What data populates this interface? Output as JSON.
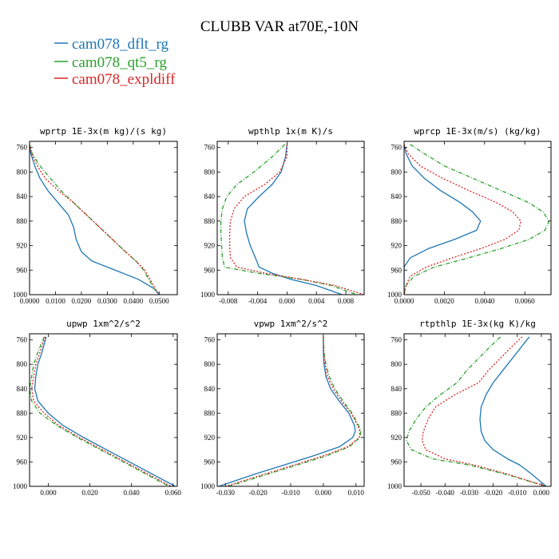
{
  "figure_title": "CLUBB VAR at70E,-10N",
  "legend": [
    {
      "label": "cam078_dflt_rg",
      "color": "#1f77b4",
      "dash": "solid"
    },
    {
      "label": "cam078_qt5_rg",
      "color": "#2ca02c",
      "dash": "dashdot"
    },
    {
      "label": "cam078_expldiff",
      "color": "#d62728",
      "dash": "dotted"
    }
  ],
  "chart_data": [
    {
      "type": "line",
      "title": "wprtp  1E-3x(m kg)/(s kg)",
      "xlim": [
        0,
        0.057
      ],
      "ylim": [
        1000,
        750
      ],
      "xticks": [
        0,
        0.01,
        0.02,
        0.03,
        0.04,
        0.05
      ],
      "xticklabels": [
        "0.0000",
        "0.0100",
        "0.0200",
        "0.0300",
        "0.0400",
        "0.0500"
      ],
      "yticks": [
        760,
        800,
        840,
        880,
        920,
        960,
        1000
      ],
      "y": [
        755,
        770,
        790,
        810,
        830,
        850,
        870,
        890,
        910,
        930,
        945,
        960,
        975,
        990,
        1000
      ],
      "series": [
        {
          "name": "cam078_dflt_rg",
          "x": [
            0.0,
            0.0005,
            0.002,
            0.004,
            0.007,
            0.011,
            0.015,
            0.017,
            0.018,
            0.02,
            0.024,
            0.033,
            0.042,
            0.048,
            0.05
          ]
        },
        {
          "name": "cam078_qt5_rg",
          "x": [
            0.0,
            0.001,
            0.004,
            0.008,
            0.012,
            0.017,
            0.022,
            0.027,
            0.032,
            0.037,
            0.041,
            0.044,
            0.046,
            0.048,
            0.05
          ]
        },
        {
          "name": "cam078_expldiff",
          "x": [
            0.0,
            0.0008,
            0.003,
            0.006,
            0.011,
            0.017,
            0.022,
            0.027,
            0.032,
            0.037,
            0.041,
            0.0445,
            0.0465,
            0.0485,
            0.05
          ]
        }
      ]
    },
    {
      "type": "line",
      "title": "wpthlp  1x(m K)/s",
      "xlim": [
        -0.0095,
        0.0105
      ],
      "ylim": [
        1000,
        750
      ],
      "xticks": [
        -0.008,
        -0.004,
        0,
        0.004,
        0.008
      ],
      "xticklabels": [
        "-0.008",
        "-0.004",
        "0.000",
        "0.004",
        "0.008"
      ],
      "yticks": [
        760,
        800,
        840,
        880,
        920,
        960,
        1000
      ],
      "y": [
        755,
        775,
        800,
        820,
        840,
        860,
        880,
        900,
        920,
        940,
        955,
        965,
        975,
        985,
        1000
      ],
      "series": [
        {
          "name": "cam078_dflt_rg",
          "x": [
            0.0,
            -0.0002,
            -0.0008,
            -0.002,
            -0.0038,
            -0.0054,
            -0.0058,
            -0.0055,
            -0.005,
            -0.0043,
            -0.0038,
            -0.002,
            0.0005,
            0.004,
            0.0075
          ]
        },
        {
          "name": "cam078_qt5_rg",
          "x": [
            -0.0003,
            -0.002,
            -0.0045,
            -0.0068,
            -0.0082,
            -0.0088,
            -0.009,
            -0.009,
            -0.0089,
            -0.0088,
            -0.0085,
            -0.004,
            0.002,
            0.006,
            0.0095
          ]
        },
        {
          "name": "cam078_expldiff",
          "x": [
            0.0,
            0.0,
            -0.001,
            -0.003,
            -0.0058,
            -0.0072,
            -0.0077,
            -0.0078,
            -0.0078,
            -0.0077,
            -0.0068,
            -0.003,
            0.002,
            0.0065,
            0.0105
          ]
        }
      ]
    },
    {
      "type": "line",
      "title": "wprcp  1E-3x(m/s) (kg/kg)",
      "xlim": [
        0,
        0.0073
      ],
      "ylim": [
        1000,
        750
      ],
      "xticks": [
        0,
        0.002,
        0.004,
        0.006
      ],
      "xticklabels": [
        "0.0000",
        "0.0020",
        "0.0040",
        "0.0060"
      ],
      "yticks": [
        760,
        800,
        840,
        880,
        920,
        960,
        1000
      ],
      "y": [
        755,
        770,
        790,
        810,
        830,
        850,
        865,
        880,
        895,
        910,
        925,
        940,
        955,
        970,
        985,
        1000
      ],
      "series": [
        {
          "name": "cam078_dflt_rg",
          "x": [
            0.0,
            0.0001,
            0.0004,
            0.001,
            0.0018,
            0.0028,
            0.0034,
            0.0038,
            0.0036,
            0.0025,
            0.0012,
            0.0003,
            0.0,
            0.0,
            0.0,
            0.0
          ]
        },
        {
          "name": "cam078_qt5_rg",
          "x": [
            0.0003,
            0.001,
            0.002,
            0.0034,
            0.0048,
            0.0062,
            0.0069,
            0.0072,
            0.007,
            0.0062,
            0.0048,
            0.0032,
            0.0015,
            0.0005,
            0.0001,
            0.0
          ]
        },
        {
          "name": "cam078_expldiff",
          "x": [
            0.0,
            0.0002,
            0.0008,
            0.0019,
            0.0032,
            0.0046,
            0.0054,
            0.0058,
            0.0057,
            0.005,
            0.0038,
            0.0024,
            0.0011,
            0.0003,
            0.0001,
            0.0
          ]
        }
      ]
    },
    {
      "type": "line",
      "title": "upwp  1xm^2/s^2",
      "xlim": [
        -0.009,
        0.062
      ],
      "ylim": [
        1000,
        750
      ],
      "xticks": [
        0,
        0.02,
        0.04,
        0.06
      ],
      "xticklabels": [
        "0.000",
        "0.020",
        "0.040",
        "0.060"
      ],
      "yticks": [
        760,
        800,
        840,
        880,
        920,
        960,
        1000
      ],
      "y": [
        755,
        780,
        800,
        820,
        840,
        860,
        880,
        900,
        920,
        940,
        960,
        980,
        1000
      ],
      "series": [
        {
          "name": "cam078_dflt_rg",
          "x": [
            -0.001,
            -0.003,
            -0.005,
            -0.006,
            -0.0065,
            -0.005,
            0.0,
            0.007,
            0.017,
            0.028,
            0.039,
            0.05,
            0.061
          ]
        },
        {
          "name": "cam078_qt5_rg",
          "x": [
            -0.002,
            -0.005,
            -0.007,
            -0.008,
            -0.009,
            -0.008,
            -0.004,
            0.004,
            0.014,
            0.025,
            0.036,
            0.047,
            0.058
          ]
        },
        {
          "name": "cam078_expldiff",
          "x": [
            -0.0015,
            -0.004,
            -0.006,
            -0.007,
            -0.008,
            -0.007,
            -0.002,
            0.005,
            0.015,
            0.026,
            0.037,
            0.048,
            0.059
          ]
        }
      ]
    },
    {
      "type": "line",
      "title": "vpwp  1xm^2/s^2",
      "xlim": [
        -0.0325,
        0.0125
      ],
      "ylim": [
        1000,
        750
      ],
      "xticks": [
        -0.03,
        -0.02,
        -0.01,
        0,
        0.01
      ],
      "xticklabels": [
        "-0.030",
        "-0.020",
        "-0.010",
        "0.000",
        "0.010"
      ],
      "yticks": [
        760,
        800,
        840,
        880,
        920,
        960,
        1000
      ],
      "y": [
        755,
        780,
        800,
        820,
        840,
        860,
        880,
        900,
        910,
        920,
        935,
        950,
        965,
        980,
        1000
      ],
      "series": [
        {
          "name": "cam078_dflt_rg",
          "x": [
            0.0,
            0.0,
            0.0002,
            0.0008,
            0.0022,
            0.0048,
            0.0078,
            0.0095,
            0.0098,
            0.009,
            0.005,
            -0.003,
            -0.012,
            -0.021,
            -0.032
          ]
        },
        {
          "name": "cam078_qt5_rg",
          "x": [
            0.0,
            0.0002,
            0.0008,
            0.0018,
            0.0035,
            0.006,
            0.0088,
            0.0108,
            0.0115,
            0.0112,
            0.008,
            0.001,
            -0.008,
            -0.017,
            -0.029
          ]
        },
        {
          "name": "cam078_expldiff",
          "x": [
            0.0,
            0.0001,
            0.0005,
            0.0013,
            0.003,
            0.0055,
            0.0085,
            0.0105,
            0.0112,
            0.011,
            0.0075,
            0.0,
            -0.009,
            -0.018,
            -0.03
          ]
        }
      ]
    },
    {
      "type": "line",
      "title": "rtpthlp  1E-3x(kg K)/kg",
      "xlim": [
        -0.057,
        0.004
      ],
      "ylim": [
        1000,
        750
      ],
      "xticks": [
        -0.05,
        -0.04,
        -0.03,
        -0.02,
        -0.01,
        0
      ],
      "xticklabels": [
        "-0.050",
        "-0.040",
        "-0.030",
        "-0.020",
        "-0.010",
        "0.000"
      ],
      "yticks": [
        760,
        800,
        840,
        880,
        920,
        960,
        1000
      ],
      "y": [
        755,
        770,
        790,
        810,
        830,
        850,
        870,
        890,
        910,
        925,
        940,
        955,
        965,
        980,
        1000
      ],
      "series": [
        {
          "name": "cam078_dflt_rg",
          "x": [
            -0.005,
            -0.008,
            -0.012,
            -0.016,
            -0.02,
            -0.023,
            -0.025,
            -0.0255,
            -0.025,
            -0.0235,
            -0.02,
            -0.014,
            -0.009,
            -0.004,
            0.002
          ]
        },
        {
          "name": "cam078_qt5_rg",
          "x": [
            -0.017,
            -0.021,
            -0.026,
            -0.031,
            -0.035,
            -0.042,
            -0.048,
            -0.052,
            -0.055,
            -0.056,
            -0.054,
            -0.045,
            -0.03,
            -0.015,
            0.002
          ]
        },
        {
          "name": "cam078_expldiff",
          "x": [
            -0.008,
            -0.012,
            -0.017,
            -0.022,
            -0.026,
            -0.036,
            -0.044,
            -0.047,
            -0.049,
            -0.0495,
            -0.048,
            -0.04,
            -0.028,
            -0.014,
            0.002
          ]
        }
      ]
    }
  ]
}
